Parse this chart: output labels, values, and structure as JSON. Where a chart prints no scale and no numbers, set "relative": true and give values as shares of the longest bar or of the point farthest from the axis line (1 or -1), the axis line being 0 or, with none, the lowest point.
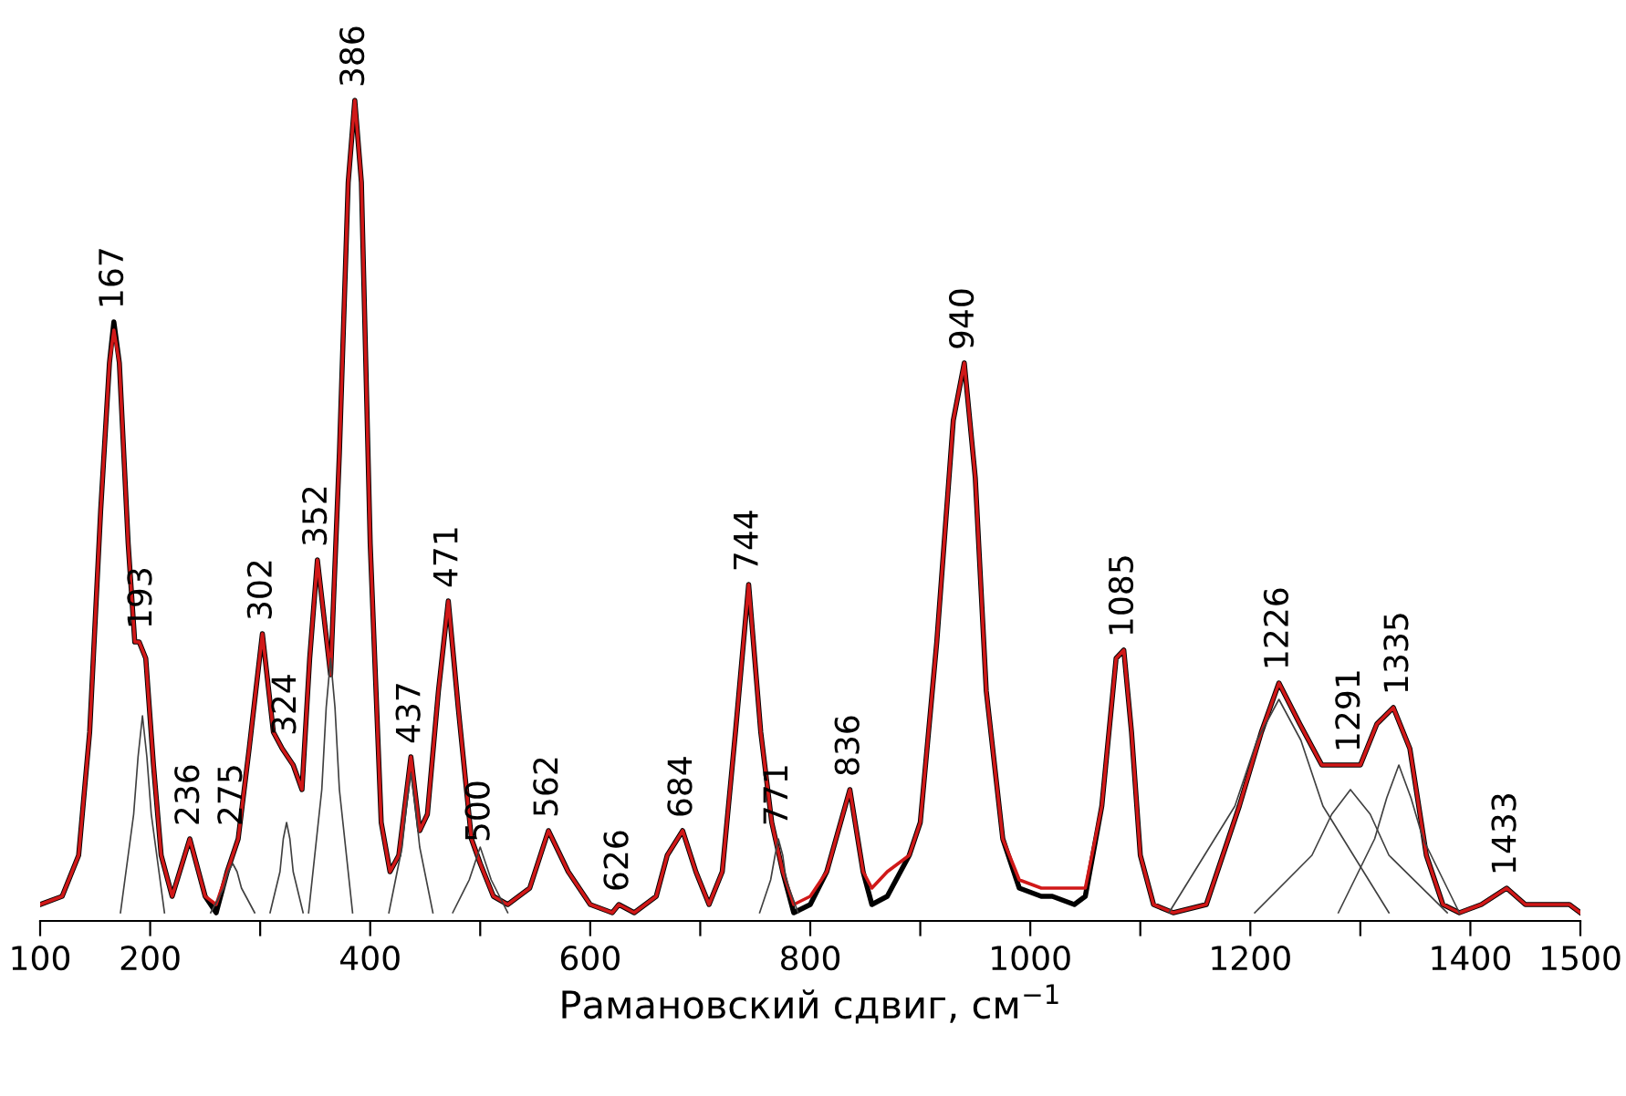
{
  "chart_data": {
    "type": "line",
    "relative": true,
    "xlabel": "Рамановский сдвиг, см$^{−1}$",
    "xlim": [
      100,
      1500
    ],
    "xticks": [
      100,
      200,
      {
        "value": 300,
        "label": null
      },
      400,
      {
        "value": 500,
        "label": null
      },
      600,
      {
        "value": 700,
        "label": null
      },
      800,
      {
        "value": 900,
        "label": null
      },
      1000,
      {
        "value": 1100,
        "label": null
      },
      1200,
      {
        "value": 1300,
        "label": null
      },
      1400,
      1500
    ],
    "tick_labels": "x",
    "grid": false,
    "legend": false,
    "marker": "none",
    "line_style": "solid",
    "series": [
      {
        "color": "#000000",
        "x": [
          100,
          120,
          135,
          145,
          155,
          163,
          167,
          172,
          180,
          186,
          190,
          196,
          203,
          210,
          220,
          236,
          250,
          260,
          270,
          280,
          290,
          302,
          312,
          320,
          330,
          338,
          345,
          352,
          358,
          364,
          372,
          380,
          386,
          392,
          400,
          410,
          418,
          426,
          437,
          445,
          452,
          462,
          471,
          480,
          492,
          500,
          512,
          525,
          545,
          562,
          580,
          600,
          620,
          626,
          640,
          660,
          670,
          684,
          696,
          708,
          720,
          732,
          744,
          755,
          765,
          775,
          785,
          800,
          815,
          836,
          848,
          856,
          870,
          890,
          900,
          915,
          930,
          940,
          950,
          960,
          975,
          990,
          1010,
          1020,
          1040,
          1050,
          1065,
          1078,
          1085,
          1092,
          1100,
          1112,
          1130,
          1160,
          1190,
          1210,
          1226,
          1245,
          1265,
          1285,
          1300,
          1315,
          1330,
          1345,
          1360,
          1375,
          1390,
          1410,
          1433,
          1450,
          1480,
          1490,
          1500
        ],
        "values": [
          0.02,
          0.03,
          0.08,
          0.23,
          0.5,
          0.68,
          0.73,
          0.68,
          0.46,
          0.34,
          0.34,
          0.32,
          0.19,
          0.08,
          0.03,
          0.1,
          0.03,
          0.01,
          0.06,
          0.1,
          0.21,
          0.35,
          0.23,
          0.21,
          0.19,
          0.16,
          0.32,
          0.44,
          0.37,
          0.3,
          0.57,
          0.9,
          1.0,
          0.9,
          0.46,
          0.12,
          0.06,
          0.08,
          0.2,
          0.11,
          0.13,
          0.28,
          0.39,
          0.26,
          0.1,
          0.07,
          0.03,
          0.02,
          0.04,
          0.11,
          0.06,
          0.02,
          0.01,
          0.02,
          0.01,
          0.03,
          0.08,
          0.11,
          0.06,
          0.02,
          0.06,
          0.23,
          0.41,
          0.23,
          0.12,
          0.06,
          0.01,
          0.02,
          0.06,
          0.16,
          0.06,
          0.02,
          0.03,
          0.08,
          0.12,
          0.34,
          0.61,
          0.68,
          0.54,
          0.28,
          0.1,
          0.04,
          0.03,
          0.03,
          0.02,
          0.03,
          0.14,
          0.32,
          0.33,
          0.23,
          0.08,
          0.02,
          0.01,
          0.02,
          0.14,
          0.23,
          0.29,
          0.24,
          0.19,
          0.19,
          0.19,
          0.24,
          0.26,
          0.21,
          0.08,
          0.02,
          0.01,
          0.02,
          0.04,
          0.02,
          0.02,
          0.02,
          0.01
        ]
      },
      {
        "color": "#d01818",
        "x": [
          100,
          120,
          135,
          145,
          155,
          163,
          167,
          172,
          180,
          186,
          190,
          196,
          203,
          210,
          220,
          236,
          250,
          260,
          270,
          280,
          290,
          302,
          312,
          320,
          330,
          338,
          345,
          352,
          358,
          364,
          372,
          380,
          386,
          392,
          400,
          410,
          418,
          426,
          437,
          445,
          452,
          462,
          471,
          480,
          492,
          500,
          512,
          525,
          545,
          562,
          580,
          600,
          620,
          626,
          640,
          660,
          670,
          684,
          696,
          708,
          720,
          732,
          744,
          755,
          765,
          775,
          785,
          800,
          815,
          836,
          848,
          856,
          870,
          890,
          900,
          915,
          930,
          940,
          950,
          960,
          975,
          990,
          1010,
          1020,
          1040,
          1050,
          1065,
          1078,
          1085,
          1092,
          1100,
          1112,
          1130,
          1160,
          1190,
          1210,
          1226,
          1245,
          1265,
          1285,
          1300,
          1315,
          1330,
          1345,
          1360,
          1375,
          1390,
          1410,
          1433,
          1450,
          1480,
          1490,
          1500
        ],
        "values": [
          0.02,
          0.03,
          0.08,
          0.23,
          0.5,
          0.68,
          0.72,
          0.68,
          0.46,
          0.34,
          0.34,
          0.32,
          0.19,
          0.08,
          0.03,
          0.1,
          0.03,
          0.02,
          0.06,
          0.1,
          0.21,
          0.35,
          0.23,
          0.21,
          0.19,
          0.16,
          0.32,
          0.44,
          0.37,
          0.3,
          0.57,
          0.9,
          1.0,
          0.9,
          0.46,
          0.12,
          0.06,
          0.08,
          0.2,
          0.11,
          0.13,
          0.28,
          0.39,
          0.26,
          0.1,
          0.07,
          0.03,
          0.02,
          0.04,
          0.11,
          0.06,
          0.02,
          0.01,
          0.02,
          0.01,
          0.03,
          0.08,
          0.11,
          0.06,
          0.02,
          0.06,
          0.23,
          0.41,
          0.23,
          0.12,
          0.06,
          0.02,
          0.03,
          0.06,
          0.16,
          0.06,
          0.04,
          0.06,
          0.08,
          0.12,
          0.34,
          0.61,
          0.68,
          0.54,
          0.28,
          0.1,
          0.05,
          0.04,
          0.04,
          0.04,
          0.04,
          0.14,
          0.32,
          0.33,
          0.23,
          0.08,
          0.02,
          0.01,
          0.02,
          0.14,
          0.23,
          0.29,
          0.24,
          0.19,
          0.19,
          0.19,
          0.24,
          0.26,
          0.21,
          0.08,
          0.02,
          0.01,
          0.02,
          0.04,
          0.02,
          0.02,
          0.02,
          0.01
        ]
      },
      {
        "color": "#404040",
        "x": [
          173,
          185,
          189,
          193,
          197,
          201,
          213
        ],
        "values": [
          0.01,
          0.13,
          0.2,
          0.25,
          0.2,
          0.13,
          0.01
        ]
      },
      {
        "color": "#404040",
        "x": [
          255,
          267,
          271,
          275,
          279,
          283,
          295
        ],
        "values": [
          0.01,
          0.04,
          0.06,
          0.07,
          0.06,
          0.04,
          0.01
        ]
      },
      {
        "color": "#404040",
        "x": [
          309,
          318,
          321,
          324,
          327,
          330,
          339
        ],
        "values": [
          0.01,
          0.06,
          0.1,
          0.12,
          0.1,
          0.06,
          0.01
        ]
      },
      {
        "color": "#404040",
        "x": [
          344,
          356,
          360,
          364,
          368,
          372,
          384
        ],
        "values": [
          0.01,
          0.16,
          0.26,
          0.32,
          0.26,
          0.16,
          0.01
        ]
      },
      {
        "color": "#404040",
        "x": [
          417,
          429,
          433,
          437,
          441,
          445,
          457
        ],
        "values": [
          0.01,
          0.09,
          0.14,
          0.18,
          0.14,
          0.09,
          0.01
        ]
      },
      {
        "color": "#404040",
        "x": [
          475,
          490,
          495,
          500,
          505,
          510,
          525
        ],
        "values": [
          0.01,
          0.05,
          0.07,
          0.09,
          0.07,
          0.05,
          0.01
        ]
      },
      {
        "color": "#404040",
        "x": [
          754,
          764,
          768,
          771,
          775,
          778,
          789
        ],
        "values": [
          0.01,
          0.05,
          0.08,
          0.1,
          0.08,
          0.05,
          0.01
        ]
      },
      {
        "color": "#404040",
        "x": [
          1126,
          1186,
          1206,
          1226,
          1246,
          1266,
          1326
        ],
        "values": [
          0.01,
          0.14,
          0.22,
          0.27,
          0.22,
          0.14,
          0.01
        ]
      },
      {
        "color": "#404040",
        "x": [
          1204,
          1256,
          1274,
          1291,
          1309,
          1326,
          1379
        ],
        "values": [
          0.01,
          0.08,
          0.13,
          0.16,
          0.13,
          0.08,
          0.01
        ]
      },
      {
        "color": "#404040",
        "x": [
          1280,
          1313,
          1324,
          1335,
          1346,
          1357,
          1390
        ],
        "values": [
          0.01,
          0.1,
          0.15,
          0.19,
          0.15,
          0.1,
          0.01
        ]
      }
    ],
    "annotations": [
      {
        "text": "167",
        "x": 167,
        "y": 0.73
      },
      {
        "text": "193",
        "x": 193,
        "y": 0.34
      },
      {
        "text": "236",
        "x": 236,
        "y": 0.1
      },
      {
        "text": "275",
        "x": 275,
        "y": 0.1
      },
      {
        "text": "302",
        "x": 302,
        "y": 0.35
      },
      {
        "text": "324",
        "x": 324,
        "y": 0.21
      },
      {
        "text": "352",
        "x": 352,
        "y": 0.44
      },
      {
        "text": "386",
        "x": 386,
        "y": 1.0
      },
      {
        "text": "437",
        "x": 437,
        "y": 0.2
      },
      {
        "text": "471",
        "x": 471,
        "y": 0.39
      },
      {
        "text": "500",
        "x": 500,
        "y": 0.08
      },
      {
        "text": "562",
        "x": 562,
        "y": 0.11
      },
      {
        "text": "626",
        "x": 626,
        "y": 0.02
      },
      {
        "text": "684",
        "x": 684,
        "y": 0.11
      },
      {
        "text": "744",
        "x": 744,
        "y": 0.41
      },
      {
        "text": "771",
        "x": 771,
        "y": 0.1
      },
      {
        "text": "836",
        "x": 836,
        "y": 0.16
      },
      {
        "text": "940",
        "x": 940,
        "y": 0.68
      },
      {
        "text": "1085",
        "x": 1085,
        "y": 0.33
      },
      {
        "text": "1226",
        "x": 1226,
        "y": 0.29
      },
      {
        "text": "1291",
        "x": 1291,
        "y": 0.19
      },
      {
        "text": "1335",
        "x": 1335,
        "y": 0.26
      },
      {
        "text": "1433",
        "x": 1433,
        "y": 0.04
      }
    ]
  }
}
